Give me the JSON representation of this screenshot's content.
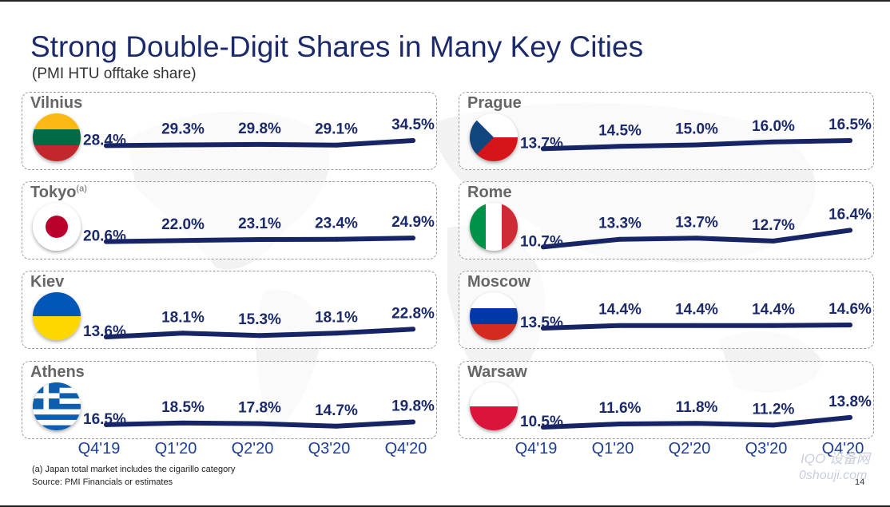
{
  "header": {
    "title": "Strong Double-Digit Shares in Many Key Cities",
    "subtitle": "(PMI HTU offtake share)"
  },
  "chart_data": {
    "type": "line",
    "categories": [
      "Q4'19",
      "Q1'20",
      "Q2'20",
      "Q3'20",
      "Q4'20"
    ],
    "unit": "%",
    "panels": [
      {
        "city": "Vilnius",
        "flag": "lithuania-flag-icon",
        "values": [
          28.4,
          29.3,
          29.8,
          29.1,
          34.5
        ],
        "labels": [
          "28.4%",
          "29.3%",
          "29.8%",
          "29.1%",
          "34.5%"
        ]
      },
      {
        "city": "Tokyo",
        "note": "(a)",
        "flag": "japan-flag-icon",
        "values": [
          20.6,
          22.0,
          23.1,
          23.4,
          24.9
        ],
        "labels": [
          "20.6%",
          "22.0%",
          "23.1%",
          "23.4%",
          "24.9%"
        ]
      },
      {
        "city": "Kiev",
        "flag": "ukraine-flag-icon",
        "values": [
          13.6,
          18.1,
          15.3,
          18.1,
          22.8
        ],
        "labels": [
          "13.6%",
          "18.1%",
          "15.3%",
          "18.1%",
          "22.8%"
        ]
      },
      {
        "city": "Athens",
        "flag": "greece-flag-icon",
        "values": [
          16.5,
          18.5,
          17.8,
          14.7,
          19.8
        ],
        "labels": [
          "16.5%",
          "18.5%",
          "17.8%",
          "14.7%",
          "19.8%"
        ]
      },
      {
        "city": "Prague",
        "flag": "czech-flag-icon",
        "values": [
          13.7,
          14.5,
          15.0,
          16.0,
          16.5
        ],
        "labels": [
          "13.7%",
          "14.5%",
          "15.0%",
          "16.0%",
          "16.5%"
        ]
      },
      {
        "city": "Rome",
        "flag": "italy-flag-icon",
        "values": [
          10.7,
          13.3,
          13.7,
          12.7,
          16.4
        ],
        "labels": [
          "10.7%",
          "13.3%",
          "13.7%",
          "12.7%",
          "16.4%"
        ]
      },
      {
        "city": "Moscow",
        "flag": "russia-flag-icon",
        "values": [
          13.5,
          14.4,
          14.4,
          14.4,
          14.6
        ],
        "labels": [
          "13.5%",
          "14.4%",
          "14.4%",
          "14.4%",
          "14.6%"
        ]
      },
      {
        "city": "Warsaw",
        "flag": "poland-flag-icon",
        "values": [
          10.5,
          11.6,
          11.8,
          11.2,
          13.8
        ],
        "labels": [
          "10.5%",
          "11.6%",
          "11.8%",
          "11.2%",
          "13.8%"
        ]
      }
    ],
    "line_color": "#172466"
  },
  "footer": {
    "footnote": "(a)  Japan total market includes the cigarillo category",
    "source": "Source: PMI Financials or estimates",
    "page": "14",
    "watermark_1": "IQO 设备网",
    "watermark_2": "0shouji.com"
  }
}
